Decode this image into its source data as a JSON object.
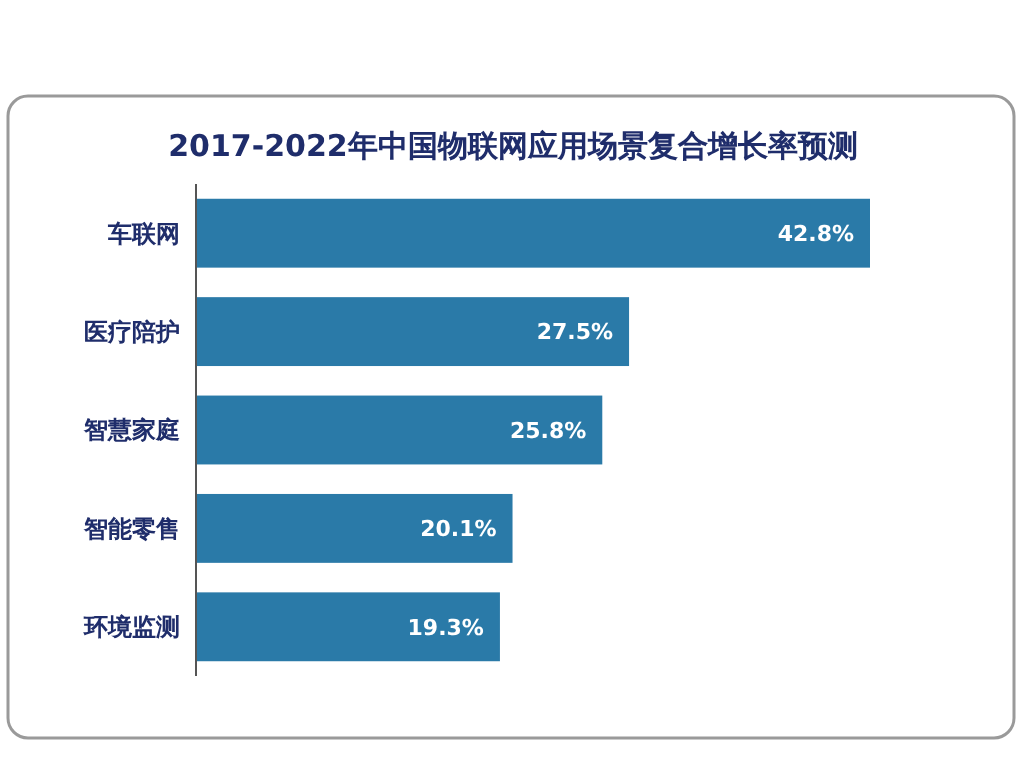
{
  "chart_data": {
    "type": "bar",
    "orientation": "horizontal",
    "title": "2017-2022年中国物联网应用场景复合增长率预测",
    "categories": [
      "车联网",
      "医疗陪护",
      "智慧家庭",
      "智能零售",
      "环境监测"
    ],
    "values": [
      42.8,
      27.5,
      25.8,
      20.1,
      19.3
    ],
    "value_labels": [
      "42.8%",
      "27.5%",
      "25.8%",
      "20.1%",
      "19.3%"
    ],
    "color": "#2a7aa8",
    "tick_labels": "y"
  }
}
